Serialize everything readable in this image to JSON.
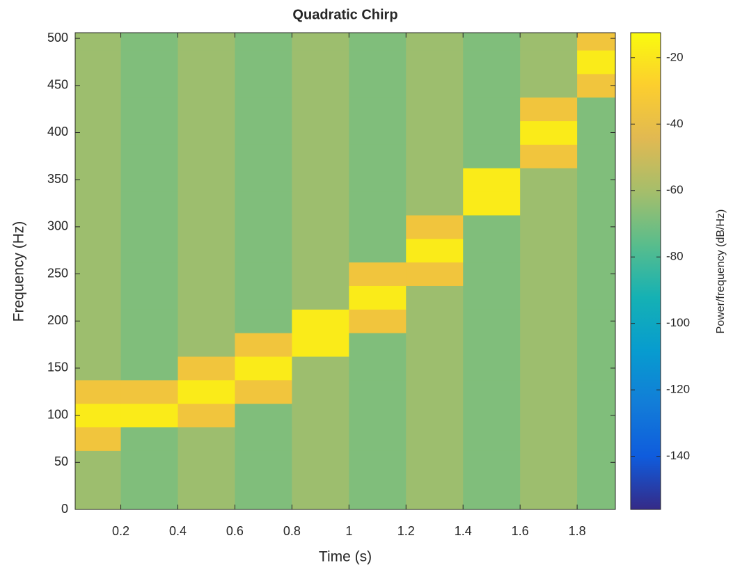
{
  "chart_data": {
    "type": "spectrogram",
    "title": "Quadratic Chirp",
    "x_label": "Time (s)",
    "y_label": "Frequency (Hz)",
    "colorbar_label": "Power/frequency (dB/Hz)",
    "colormap": "parula",
    "x": [
      0.1,
      0.3,
      0.5,
      0.7,
      0.9,
      1.1,
      1.3,
      1.5,
      1.7,
      1.9
    ],
    "y": [
      0,
      25,
      50,
      75,
      100,
      125,
      150,
      175,
      200,
      225,
      250,
      275,
      300,
      325,
      350,
      375,
      400,
      425,
      450,
      475,
      500
    ],
    "values": [
      [
        -62,
        -68,
        -62,
        -68,
        -62,
        -68,
        -62,
        -68,
        -62,
        -68
      ],
      [
        -62,
        -68,
        -62,
        -68,
        -62,
        -68,
        -62,
        -68,
        -62,
        -68
      ],
      [
        -62,
        -68,
        -62,
        -68,
        -62,
        -68,
        -62,
        -68,
        -62,
        -68
      ],
      [
        -35,
        -68,
        -62,
        -68,
        -62,
        -68,
        -62,
        -68,
        -62,
        -68
      ],
      [
        -18,
        -18,
        -35,
        -68,
        -62,
        -68,
        -62,
        -68,
        -62,
        -68
      ],
      [
        -35,
        -35,
        -18,
        -35,
        -62,
        -68,
        -62,
        -68,
        -62,
        -68
      ],
      [
        -62,
        -68,
        -35,
        -18,
        -62,
        -68,
        -62,
        -68,
        -62,
        -68
      ],
      [
        -62,
        -68,
        -62,
        -35,
        -18,
        -68,
        -62,
        -68,
        -62,
        -68
      ],
      [
        -62,
        -68,
        -62,
        -68,
        -18,
        -35,
        -62,
        -68,
        -62,
        -68
      ],
      [
        -62,
        -68,
        -62,
        -68,
        -62,
        -18,
        -62,
        -68,
        -62,
        -68
      ],
      [
        -62,
        -68,
        -62,
        -68,
        -62,
        -35,
        -35,
        -68,
        -62,
        -68
      ],
      [
        -62,
        -68,
        -62,
        -68,
        -62,
        -68,
        -18,
        -68,
        -62,
        -68
      ],
      [
        -62,
        -68,
        -62,
        -68,
        -62,
        -68,
        -35,
        -68,
        -62,
        -68
      ],
      [
        -62,
        -68,
        -62,
        -68,
        -62,
        -68,
        -62,
        -18,
        -62,
        -68
      ],
      [
        -62,
        -68,
        -62,
        -68,
        -62,
        -68,
        -62,
        -18,
        -62,
        -68
      ],
      [
        -62,
        -68,
        -62,
        -68,
        -62,
        -68,
        -62,
        -68,
        -35,
        -68
      ],
      [
        -62,
        -68,
        -62,
        -68,
        -62,
        -68,
        -62,
        -68,
        -18,
        -68
      ],
      [
        -62,
        -68,
        -62,
        -68,
        -62,
        -68,
        -62,
        -68,
        -35,
        -68
      ],
      [
        -62,
        -68,
        -62,
        -68,
        -62,
        -68,
        -62,
        -68,
        -62,
        -35
      ],
      [
        -62,
        -68,
        -62,
        -68,
        -62,
        -68,
        -62,
        -68,
        -62,
        -18
      ],
      [
        -62,
        -68,
        -62,
        -68,
        -62,
        -68,
        -62,
        -68,
        -62,
        -35
      ]
    ],
    "xlim": [
      0.04,
      1.934
    ],
    "xticks": [
      0.2,
      0.4,
      0.6,
      0.8,
      1,
      1.2,
      1.4,
      1.6,
      1.8
    ],
    "ylim": [
      0,
      506
    ],
    "yticks": [
      0,
      50,
      100,
      150,
      200,
      250,
      300,
      350,
      400,
      450,
      500
    ],
    "clim": [
      -156,
      -12.5
    ],
    "cticks": [
      -140,
      -120,
      -100,
      -80,
      -60,
      -40,
      -20
    ]
  }
}
